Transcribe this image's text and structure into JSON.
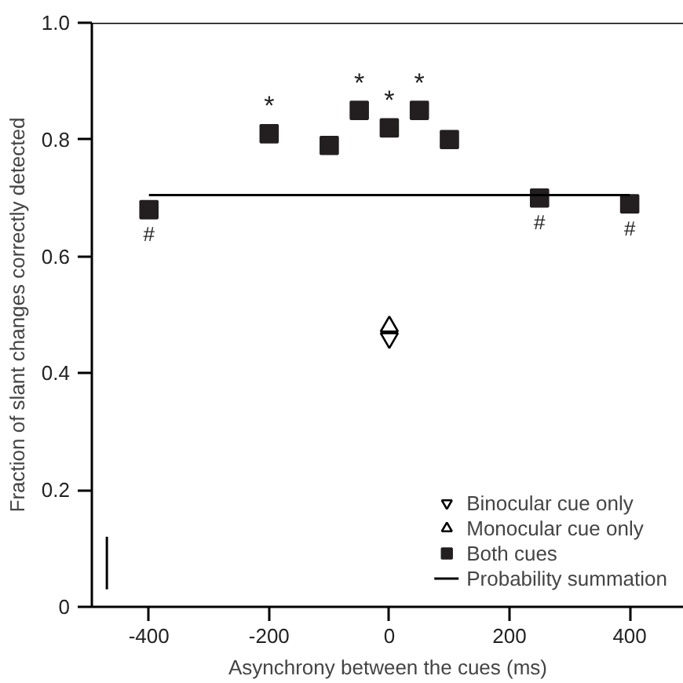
{
  "chart_data": {
    "type": "scatter",
    "xlabel": "Asynchrony between the cues (ms)",
    "ylabel": "Fraction of slant changes correctly detected",
    "xlim": [
      -495,
      490
    ],
    "ylim": [
      0,
      1.0
    ],
    "xticks": [
      -400,
      -200,
      0,
      200,
      400
    ],
    "yticks": [
      0,
      0.2,
      0.4,
      0.6,
      0.8,
      {
        "value": 1.0,
        "label": "1.0"
      }
    ],
    "grid": false,
    "legend": "bottom right",
    "series": [
      {
        "name": "Binocular cue only",
        "color": "#000000",
        "x": [
          0
        ],
        "values": [
          0.46
        ]
      },
      {
        "name": "Monocular cue only",
        "marker": "triangle",
        "color": "#000000",
        "x": [
          0
        ],
        "values": [
          0.48
        ]
      },
      {
        "name": "Both cues",
        "marker": "square",
        "color": "#231f20",
        "x": [
          -400,
          -200,
          -100,
          -50,
          0,
          50,
          100,
          250,
          400
        ],
        "values": [
          0.68,
          0.81,
          0.79,
          0.85,
          0.82,
          0.85,
          0.8,
          0.7,
          0.69
        ]
      },
      {
        "name": "Probability summation",
        "type": "line",
        "color": "#000000",
        "x": [
          -400,
          400
        ],
        "values": [
          0.705,
          0.705
        ]
      },
      {
        "type": "line",
        "color": "#000000",
        "x": [
          -470,
          -470
        ],
        "values": [
          0.03,
          0.12
        ]
      }
    ],
    "annotations": [
      {
        "text": "*",
        "x": -200,
        "y": 0.81
      },
      {
        "text": "*",
        "x": -50,
        "y": 0.85
      },
      {
        "text": "*",
        "x": 0,
        "y": 0.82
      },
      {
        "text": "*",
        "x": 50,
        "y": 0.85
      },
      {
        "text": "#",
        "x": -400,
        "y": 0.68
      },
      {
        "text": "#",
        "x": 250,
        "y": 0.7
      },
      {
        "text": "#",
        "x": 400,
        "y": 0.69
      }
    ]
  }
}
